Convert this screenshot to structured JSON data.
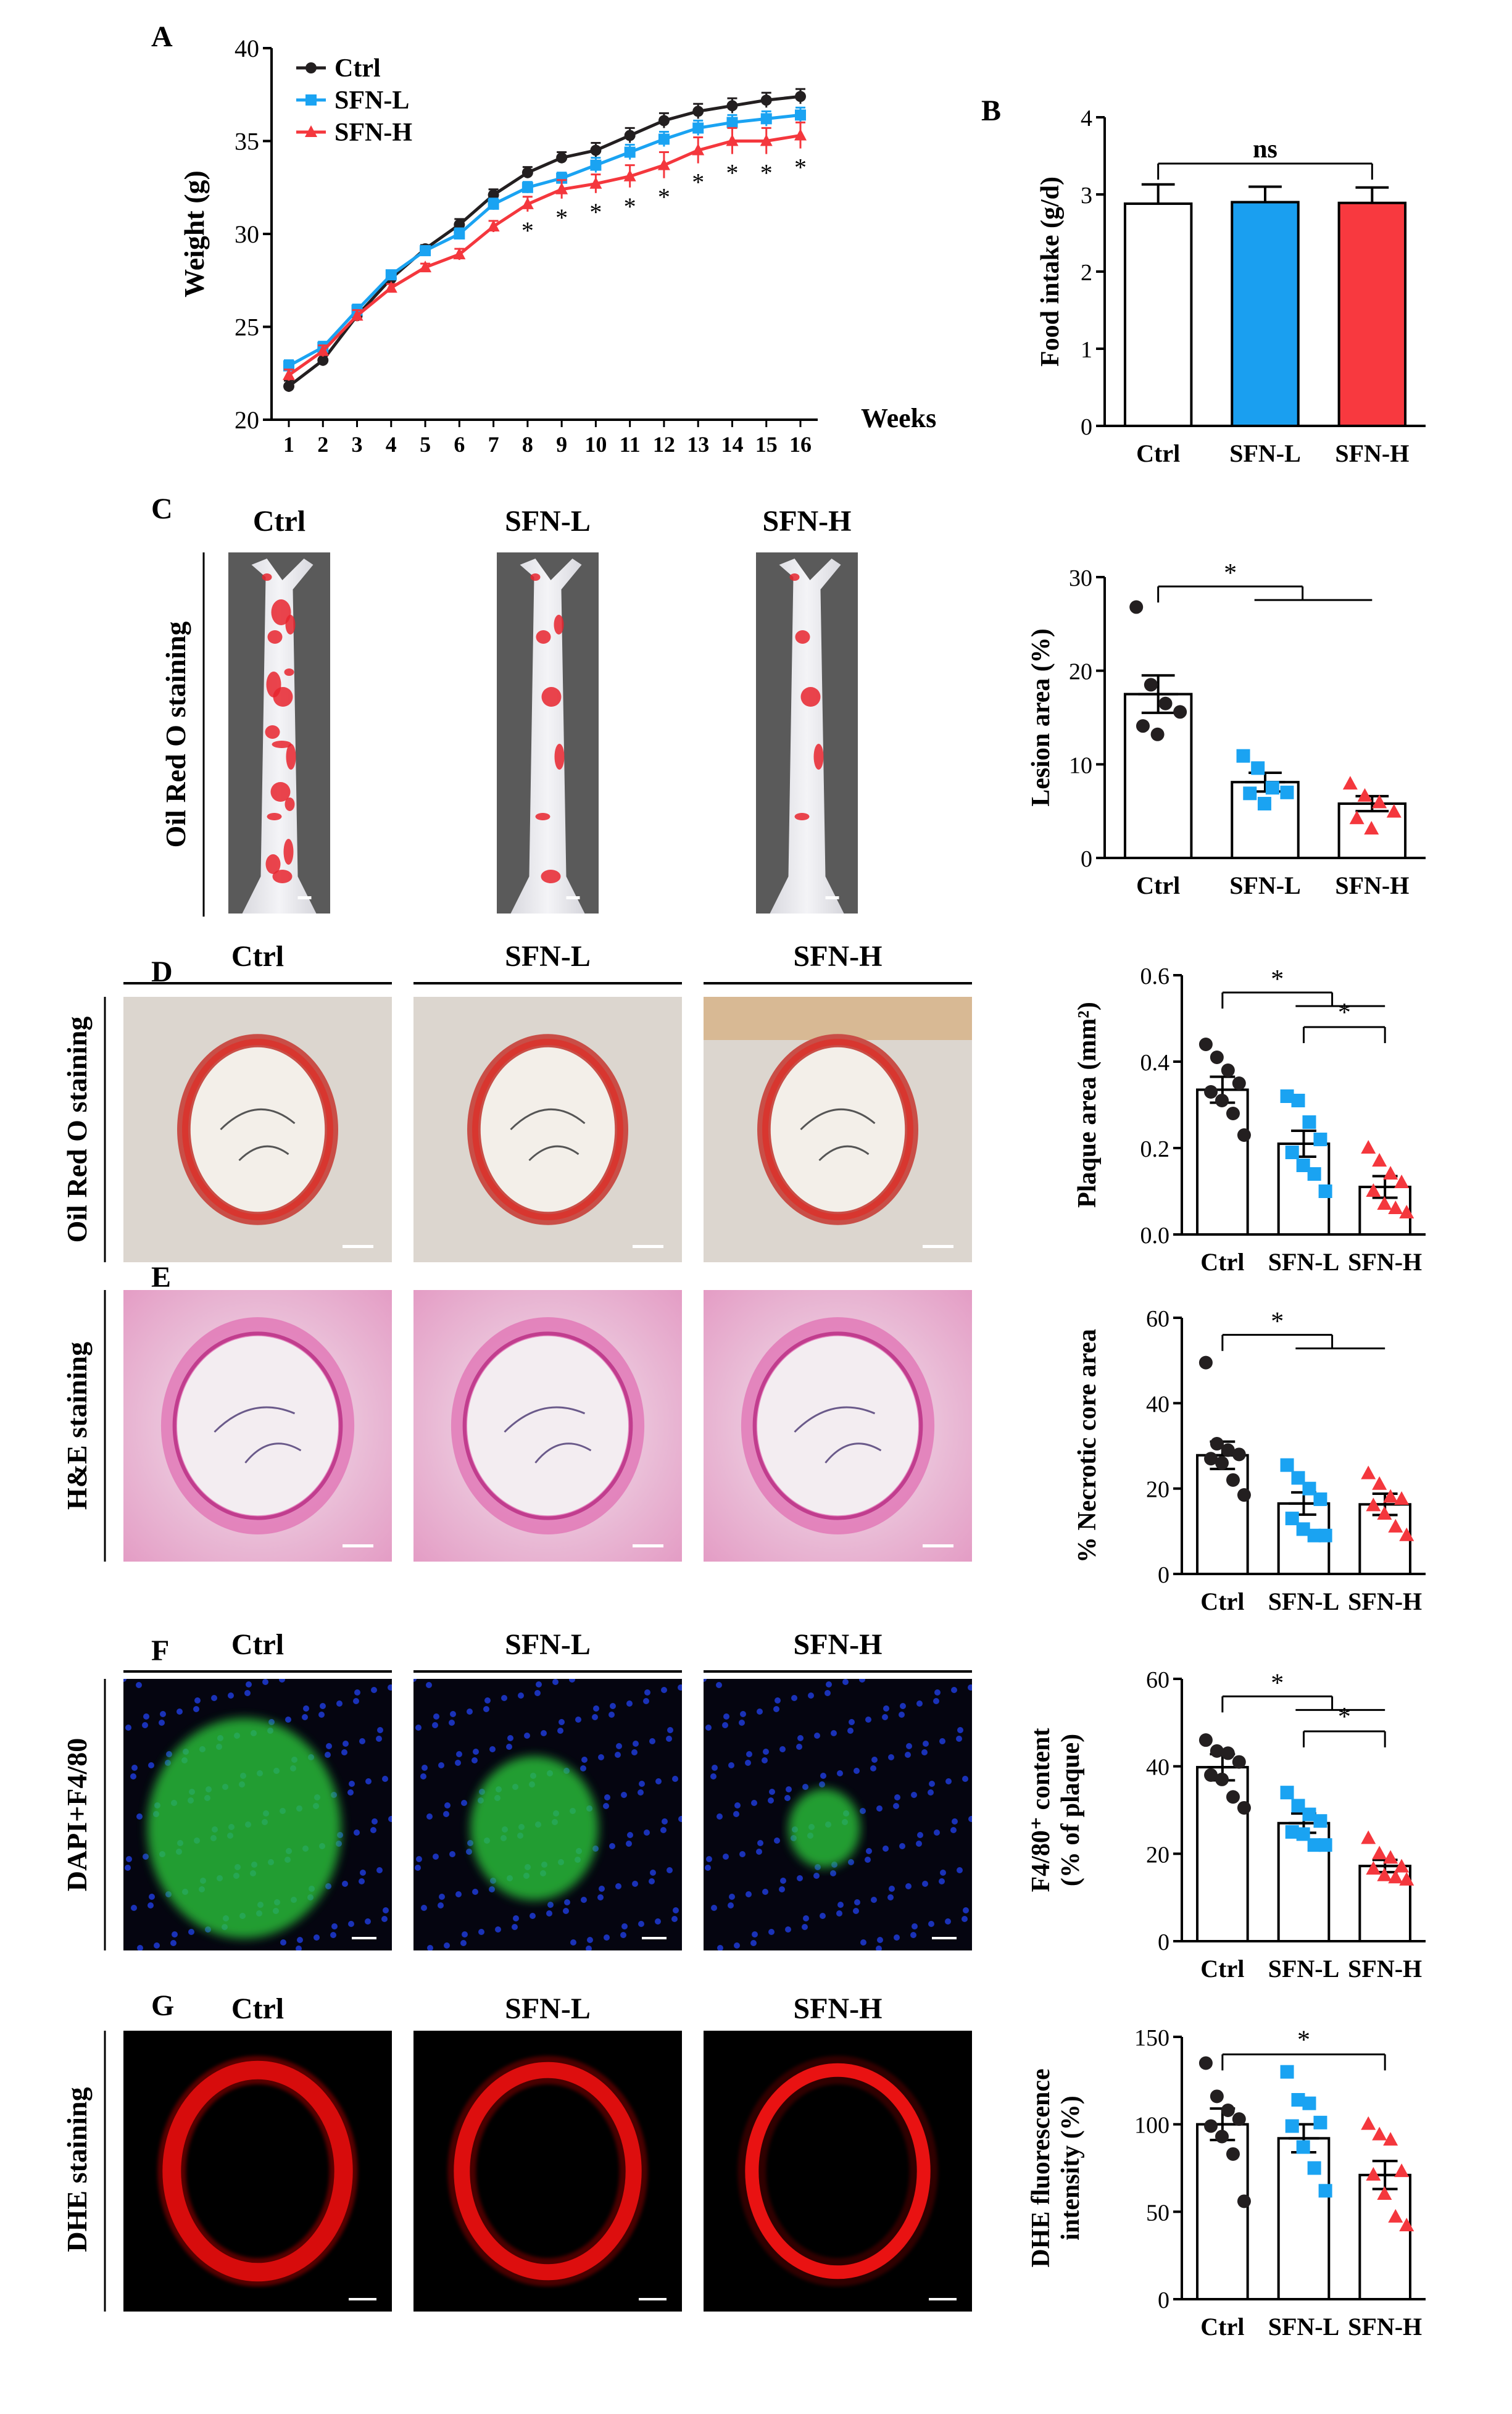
{
  "panels": {
    "A": "A",
    "B": "B",
    "C": "C",
    "D": "D",
    "E": "E",
    "F": "F",
    "G": "G"
  },
  "groups": [
    "Ctrl",
    "SFN-L",
    "SFN-H"
  ],
  "colors": {
    "Ctrl": "#231f20",
    "SFN-L": "#1aa3f2",
    "SFN-H": "#f4373d",
    "Ctrl_bar": "#ffffff",
    "SFN-L_bar": "#1a9ff0",
    "SFN-H_bar": "#f8393f"
  },
  "side_labels": {
    "C": "Oil Red O staining",
    "D": "Oil Red O staining",
    "E": "H&E staining",
    "F": "DAPI+F4/80",
    "G": "DHE staining"
  },
  "chart_data": [
    {
      "id": "A",
      "type": "line",
      "xlabel": "Weeks",
      "ylabel": "Weight (g)",
      "ylim": [
        20,
        40
      ],
      "yticks": [
        20,
        25,
        30,
        35,
        40
      ],
      "x": [
        1,
        2,
        3,
        4,
        5,
        6,
        7,
        8,
        9,
        10,
        11,
        12,
        13,
        14,
        15,
        16
      ],
      "legend": "top-left",
      "series": [
        {
          "name": "Ctrl",
          "marker": "circle",
          "values": [
            21.8,
            23.2,
            25.6,
            27.6,
            29.2,
            30.5,
            32.1,
            33.3,
            34.1,
            34.5,
            35.3,
            36.1,
            36.6,
            36.9,
            37.2,
            37.4
          ],
          "err": [
            0.3,
            0.3,
            0.3,
            0.2,
            0.2,
            0.3,
            0.3,
            0.3,
            0.3,
            0.4,
            0.4,
            0.4,
            0.4,
            0.4,
            0.4,
            0.4
          ]
        },
        {
          "name": "SFN-L",
          "marker": "square",
          "values": [
            22.9,
            23.9,
            25.9,
            27.8,
            29.1,
            30.0,
            31.6,
            32.5,
            33.0,
            33.7,
            34.4,
            35.1,
            35.7,
            36.0,
            36.2,
            36.4
          ],
          "err": [
            0.3,
            0.3,
            0.3,
            0.2,
            0.2,
            0.3,
            0.3,
            0.3,
            0.3,
            0.4,
            0.4,
            0.4,
            0.4,
            0.4,
            0.4,
            0.4
          ]
        },
        {
          "name": "SFN-H",
          "marker": "triangle",
          "values": [
            22.4,
            23.7,
            25.6,
            27.1,
            28.2,
            28.9,
            30.4,
            31.6,
            32.4,
            32.7,
            33.1,
            33.7,
            34.5,
            35.0,
            35.0,
            35.3
          ],
          "err": [
            0.3,
            0.3,
            0.3,
            0.2,
            0.2,
            0.3,
            0.3,
            0.4,
            0.5,
            0.5,
            0.6,
            0.7,
            0.7,
            0.7,
            0.7,
            0.7
          ]
        }
      ],
      "significance": {
        "symbol": "*",
        "weeks": [
          8,
          9,
          10,
          11,
          12,
          13,
          14,
          15,
          16
        ]
      }
    },
    {
      "id": "B",
      "type": "bar",
      "categories": [
        "Ctrl",
        "SFN-L",
        "SFN-H"
      ],
      "ylabel": "Food intake (g/d)",
      "ylim": [
        0,
        4
      ],
      "yticks": [
        0,
        1,
        2,
        3,
        4
      ],
      "values": [
        2.88,
        2.9,
        2.89
      ],
      "err": [
        0.25,
        0.2,
        0.2
      ],
      "points": [],
      "brackets": [
        {
          "label": "ns",
          "from": 0,
          "to": 2,
          "y": 3.4
        }
      ]
    },
    {
      "id": "C",
      "type": "bar",
      "categories": [
        "Ctrl",
        "SFN-L",
        "SFN-H"
      ],
      "ylabel": "Lesion area (%)",
      "ylim": [
        0,
        30
      ],
      "yticks": [
        0,
        10,
        20,
        30
      ],
      "values": [
        17.5,
        8.1,
        5.8
      ],
      "err": [
        2.0,
        1.0,
        0.8
      ],
      "points": [
        [
          26.8,
          18.5,
          16.5,
          15.6,
          14.1,
          13.2
        ],
        [
          10.9,
          9.6,
          7.5,
          7.0,
          6.9,
          5.8
        ],
        [
          7.9,
          6.6,
          5.9,
          4.9,
          4.2,
          3.1
        ]
      ],
      "brackets": [
        {
          "label": "*",
          "from": 0,
          "to": 2,
          "y": 29.0,
          "type": "one-vs-rest"
        }
      ]
    },
    {
      "id": "D",
      "type": "bar",
      "categories": [
        "Ctrl",
        "SFN-L",
        "SFN-H"
      ],
      "ylabel": "Plaque area (mm²)",
      "ylim": [
        0,
        0.6
      ],
      "yticks": [
        0.0,
        0.2,
        0.4,
        0.6
      ],
      "values": [
        0.335,
        0.21,
        0.11
      ],
      "err": [
        0.03,
        0.03,
        0.025
      ],
      "points": [
        [
          0.44,
          0.41,
          0.38,
          0.35,
          0.33,
          0.31,
          0.28,
          0.23
        ],
        [
          0.32,
          0.31,
          0.26,
          0.22,
          0.19,
          0.16,
          0.14,
          0.1
        ],
        [
          0.2,
          0.17,
          0.14,
          0.12,
          0.1,
          0.07,
          0.06,
          0.05
        ]
      ],
      "brackets": [
        {
          "label": "*",
          "from": 0,
          "to": 2,
          "y": 0.56,
          "type": "one-vs-rest"
        },
        {
          "label": "*",
          "from": 1,
          "to": 2,
          "y": 0.48
        }
      ]
    },
    {
      "id": "E",
      "type": "bar",
      "categories": [
        "Ctrl",
        "SFN-L",
        "SFN-H"
      ],
      "ylabel": "% Necrotic core area",
      "ylim": [
        0,
        60
      ],
      "yticks": [
        0,
        20,
        40,
        60
      ],
      "values": [
        27.8,
        16.5,
        16.3
      ],
      "err": [
        3.2,
        2.6,
        2.5
      ],
      "points": [
        [
          49.5,
          30.5,
          29.0,
          28.0,
          27.0,
          26.0,
          22.0,
          18.5
        ],
        [
          25.5,
          22.5,
          20.0,
          17.5,
          13.0,
          10.5,
          9.0,
          9.0
        ],
        [
          23.5,
          21.0,
          18.0,
          17.5,
          16.0,
          14.0,
          11.0,
          9.0
        ]
      ],
      "brackets": [
        {
          "label": "*",
          "from": 0,
          "to": 2,
          "y": 56,
          "type": "one-vs-rest"
        }
      ]
    },
    {
      "id": "F",
      "type": "bar",
      "categories": [
        "Ctrl",
        "SFN-L",
        "SFN-H"
      ],
      "ylabel": "F4/80⁺ content (% of plaque)",
      "ylim": [
        0,
        60
      ],
      "yticks": [
        0,
        20,
        40,
        60
      ],
      "values": [
        39.8,
        27.0,
        17.2
      ],
      "err": [
        3.0,
        2.2,
        1.4
      ],
      "points": [
        [
          46.0,
          43.5,
          43.0,
          41.0,
          38.0,
          37.0,
          33.0,
          30.5
        ],
        [
          34.0,
          31.0,
          29.0,
          27.5,
          25.0,
          24.5,
          22.0,
          22.0
        ],
        [
          23.5,
          20.0,
          19.0,
          17.0,
          16.5,
          15.0,
          14.5,
          14.0
        ]
      ],
      "brackets": [
        {
          "label": "*",
          "from": 0,
          "to": 2,
          "y": 56,
          "type": "one-vs-rest"
        },
        {
          "label": "*",
          "from": 1,
          "to": 2,
          "y": 48
        }
      ]
    },
    {
      "id": "G",
      "type": "bar",
      "categories": [
        "Ctrl",
        "SFN-L",
        "SFN-H"
      ],
      "ylabel": "DHE fluorescence intensity (%)",
      "ylim": [
        0,
        150
      ],
      "yticks": [
        0,
        50,
        100,
        150
      ],
      "values": [
        100,
        92,
        71
      ],
      "err": [
        9,
        8,
        8
      ],
      "points": [
        [
          135,
          116,
          108,
          103,
          99,
          93,
          83,
          56
        ],
        [
          130,
          114,
          112,
          101,
          99,
          87,
          75,
          62
        ],
        [
          100,
          94,
          91,
          73,
          71,
          60,
          47,
          42
        ]
      ],
      "brackets": [
        {
          "label": "*",
          "from": 0,
          "to": 2,
          "y": 140
        }
      ]
    }
  ],
  "micrographs": [
    {
      "row": "C",
      "group": "Ctrl",
      "kind": "aorta"
    },
    {
      "row": "C",
      "group": "SFN-L",
      "kind": "aorta"
    },
    {
      "row": "C",
      "group": "SFN-H",
      "kind": "aorta"
    },
    {
      "row": "D",
      "group": "Ctrl",
      "kind": "oil-red"
    },
    {
      "row": "D",
      "group": "SFN-L",
      "kind": "oil-red"
    },
    {
      "row": "D",
      "group": "SFN-H",
      "kind": "oil-red"
    },
    {
      "row": "E",
      "group": "Ctrl",
      "kind": "he"
    },
    {
      "row": "E",
      "group": "SFN-L",
      "kind": "he"
    },
    {
      "row": "E",
      "group": "SFN-H",
      "kind": "he"
    },
    {
      "row": "F",
      "group": "Ctrl",
      "kind": "fluor"
    },
    {
      "row": "F",
      "group": "SFN-L",
      "kind": "fluor"
    },
    {
      "row": "F",
      "group": "SFN-H",
      "kind": "fluor"
    },
    {
      "row": "G",
      "group": "Ctrl",
      "kind": "dhe"
    },
    {
      "row": "G",
      "group": "SFN-L",
      "kind": "dhe"
    },
    {
      "row": "G",
      "group": "SFN-H",
      "kind": "dhe"
    }
  ]
}
